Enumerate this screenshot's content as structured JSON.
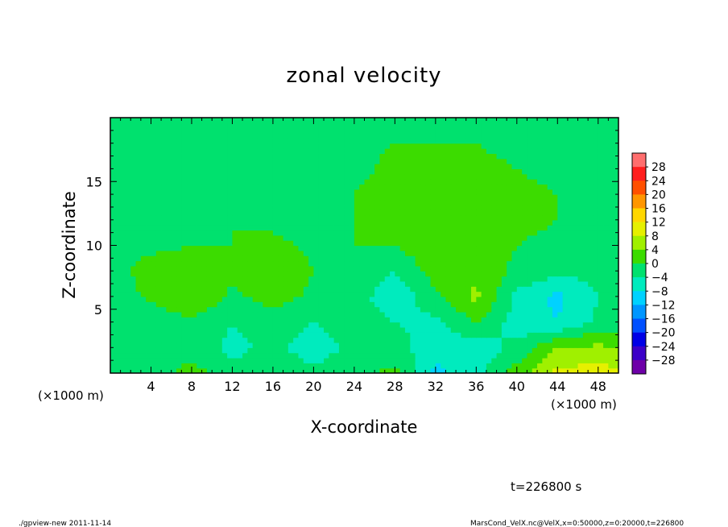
{
  "chart_data": {
    "type": "heatmap",
    "title": "zonal velocity",
    "xlabel": "X-coordinate",
    "ylabel": "Z-coordinate",
    "x_unit_left": "(×1000 m)",
    "x_unit_right": "(×1000 m)",
    "xlim": [
      0,
      50
    ],
    "ylim": [
      0,
      20
    ],
    "xticks": [
      4,
      8,
      12,
      16,
      20,
      24,
      28,
      32,
      36,
      40,
      44,
      48
    ],
    "yticks": [
      5,
      10,
      15
    ],
    "colorbar": {
      "levels": [
        -32,
        -28,
        -24,
        -20,
        -16,
        -12,
        -8,
        -4,
        0,
        4,
        8,
        12,
        16,
        20,
        24,
        28,
        32
      ],
      "labels": [
        "28",
        "24",
        "20",
        "16",
        "12",
        "8",
        "4",
        "0",
        "−4",
        "−8",
        "−12",
        "−16",
        "−20",
        "−24",
        "−28"
      ],
      "colors": [
        "#6e00a8",
        "#3c00c8",
        "#0000e6",
        "#0050ff",
        "#0096ff",
        "#00d2ff",
        "#00ebbe",
        "#00e16e",
        "#3cdc00",
        "#a0f000",
        "#e6f000",
        "#ffd700",
        "#ff9600",
        "#ff5000",
        "#ff1e1e",
        "#ff6e6e"
      ]
    },
    "field": {
      "x": [
        0,
        4,
        8,
        12,
        16,
        20,
        24,
        28,
        32,
        36,
        40,
        44,
        48,
        50
      ],
      "z": [
        0,
        2,
        4,
        6,
        8,
        10,
        12,
        14,
        16,
        18,
        20
      ],
      "values": [
        [
          -1,
          -2,
          2,
          -3,
          -1,
          -3,
          -1,
          1,
          -9,
          -6,
          2,
          9,
          10,
          9
        ],
        [
          -3,
          -4,
          -2,
          -5,
          -3,
          -6,
          -3,
          -2,
          -7,
          -6,
          -3,
          4,
          5,
          4
        ],
        [
          -4,
          -3,
          -1,
          -4,
          -2,
          -4,
          -2,
          -4,
          -5,
          0,
          -6,
          -8,
          -3,
          -3
        ],
        [
          -3,
          1,
          4,
          -1,
          2,
          -1,
          -2,
          -7,
          -1,
          5,
          -5,
          -9,
          -4,
          -4
        ],
        [
          -2,
          2,
          3,
          1,
          4,
          0,
          0,
          -4,
          2,
          3,
          -1,
          -3,
          -3,
          -3
        ],
        [
          -2,
          -1,
          0,
          0,
          1,
          -1,
          0,
          0,
          3,
          2,
          0,
          -1,
          -2,
          -2
        ],
        [
          -1,
          -1,
          -1,
          0,
          -1,
          -1,
          0,
          2,
          4,
          2,
          1,
          0,
          -1,
          -1
        ],
        [
          -1,
          -1,
          -1,
          -1,
          -1,
          -1,
          0,
          2,
          3,
          2,
          1,
          0,
          -1,
          -1
        ],
        [
          -1,
          -1,
          -1,
          -1,
          -1,
          -1,
          -1,
          1,
          1,
          1,
          0,
          -1,
          -1,
          -1
        ],
        [
          -1,
          -1,
          -1,
          -1,
          -1,
          -1,
          -1,
          0,
          0,
          0,
          -1,
          -1,
          -1,
          -1
        ],
        [
          -1,
          -1,
          -1,
          -1,
          -1,
          -1,
          -1,
          -1,
          -1,
          -1,
          -1,
          -1,
          -1,
          -1
        ]
      ]
    }
  },
  "time_label": "t=226800 s",
  "footer": {
    "left": "./gpview-new  2011-11-14",
    "right": "MarsCond_VelX.nc@VelX,x=0:50000,z=0:20000,t=226800"
  }
}
